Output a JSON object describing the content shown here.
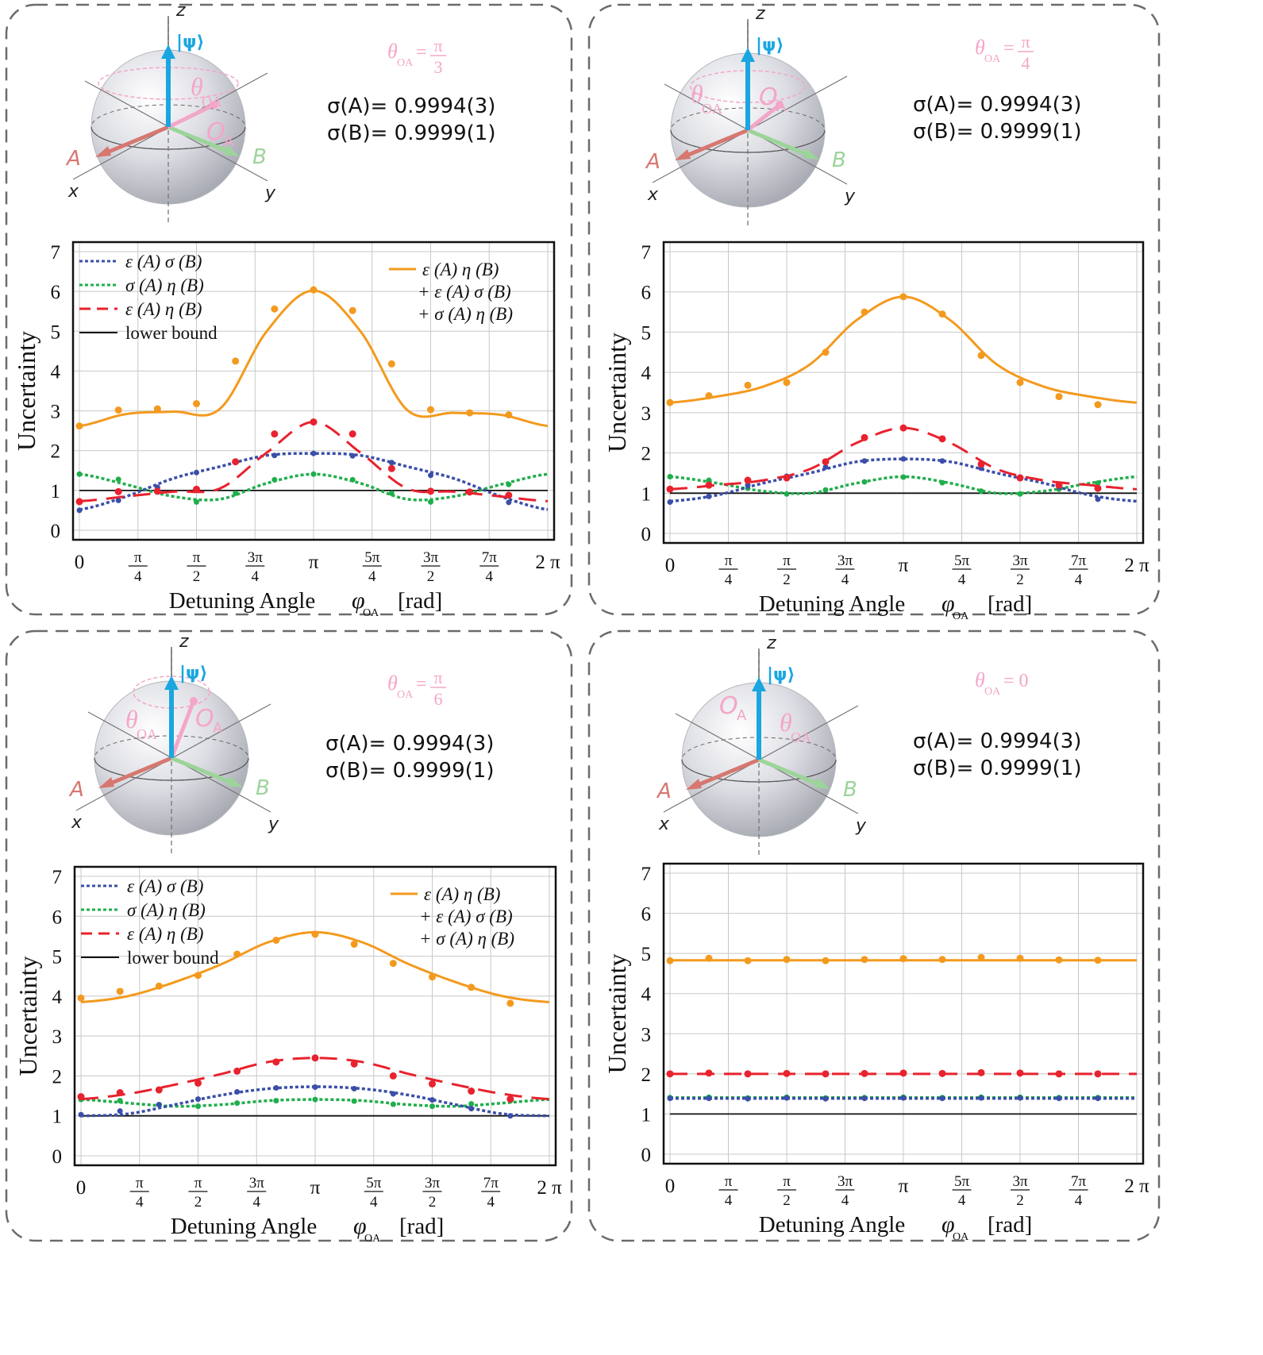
{
  "x_axis": {
    "title": "Detuning Angle",
    "symbol": "φ",
    "subscript": "OA",
    "unit": "[rad]",
    "ticks": [
      {
        "v": 0,
        "num": "0",
        "den": ""
      },
      {
        "v": 0.25,
        "num": "π",
        "den": "4"
      },
      {
        "v": 0.5,
        "num": "π",
        "den": "2"
      },
      {
        "v": 0.75,
        "num": "3π",
        "den": "4"
      },
      {
        "v": 1.0,
        "num": "π",
        "den": ""
      },
      {
        "v": 1.25,
        "num": "5π",
        "den": "4"
      },
      {
        "v": 1.5,
        "num": "3π",
        "den": "2"
      },
      {
        "v": 1.75,
        "num": "7π",
        "den": "4"
      },
      {
        "v": 2.0,
        "num": "2 π",
        "den": ""
      }
    ]
  },
  "y_axis": {
    "title": "Uncertainty",
    "ylim": [
      0,
      7
    ],
    "ticks": [
      0,
      1,
      2,
      3,
      4,
      5,
      6,
      7
    ]
  },
  "sphere_labels": {
    "z": "z",
    "x": "x",
    "y": "y",
    "A": "A",
    "B": "B",
    "psi": "|ψ⟩",
    "theta": "θ",
    "theta_sub": "OA",
    "O": "O",
    "O_sub": "A"
  },
  "legend": {
    "blue": "ε (A) σ (B)",
    "green": "σ (A) η (B)",
    "red": "ε (A) η (B)",
    "black": "lower bound",
    "orange_1": "ε (A) η (B)",
    "orange_2": "+ ε (A) σ (B)",
    "orange_3": "+ σ (A) η (B)"
  },
  "colors": {
    "orange": "#f39a1e",
    "red": "#e8222e",
    "green": "#1fae4b",
    "blue": "#3b4fa8",
    "black": "#111111",
    "pink": "#f4a6c8",
    "cyan": "#1aa6e0",
    "axisA": "#d67770",
    "axisB": "#9cd49a",
    "frame": "#6b6b6b"
  },
  "chart_data": [
    {
      "type": "line",
      "panel": "top-left",
      "theta_label": "θ",
      "theta_sub": "OA",
      "theta_eq": "=",
      "theta_num": "π",
      "theta_den": "3",
      "sigma_A": "σ(A)= 0.9994(3)",
      "sigma_B": "σ(B)= 0.9999(1)",
      "xlabel": "Detuning Angle φ_OA [rad]",
      "ylabel": "Uncertainty",
      "xlim_pi": [
        0,
        2
      ],
      "ylim": [
        0,
        7
      ],
      "legend": true,
      "x_pi": [
        0,
        0.2,
        0.4,
        0.6,
        0.8,
        1.0,
        1.2,
        1.4,
        1.6,
        1.8,
        2.0
      ],
      "series": [
        {
          "name": "ε(A)η(B)+ε(A)σ(B)+σ(A)η(B)",
          "color": "orange",
          "style": "solid",
          "curve": [
            2.62,
            2.92,
            2.98,
            3.05,
            5.0,
            6.02,
            5.0,
            3.02,
            2.95,
            2.9,
            2.62
          ],
          "points": [
            2.62,
            3.02,
            3.05,
            3.18,
            4.25,
            5.56,
            6.04,
            5.52,
            4.18,
            3.03,
            2.95,
            2.9
          ]
        },
        {
          "name": "ε(A)η(B)",
          "color": "red",
          "style": "dashed",
          "curve": [
            0.73,
            0.85,
            0.97,
            1.05,
            1.95,
            2.72,
            1.95,
            1.05,
            0.97,
            0.85,
            0.73
          ],
          "points": [
            0.72,
            0.97,
            0.98,
            1.03,
            1.72,
            2.42,
            2.72,
            2.42,
            1.55,
            0.98,
            0.96,
            0.88
          ]
        },
        {
          "name": "σ(A)η(B)",
          "color": "green",
          "style": "dotted",
          "curve": [
            1.41,
            1.15,
            0.85,
            0.78,
            1.18,
            1.41,
            1.18,
            0.78,
            0.85,
            1.15,
            1.41
          ],
          "points": [
            1.41,
            1.28,
            1.0,
            0.71,
            0.93,
            1.27,
            1.41,
            1.27,
            0.93,
            0.71,
            0.96,
            1.15
          ]
        },
        {
          "name": "ε(A)σ(B)",
          "color": "blue",
          "style": "dotted",
          "curve": [
            0.52,
            0.85,
            1.3,
            1.6,
            1.88,
            1.93,
            1.88,
            1.6,
            1.3,
            0.85,
            0.52
          ],
          "points": [
            0.5,
            0.75,
            1.08,
            1.45,
            1.72,
            1.88,
            1.93,
            1.87,
            1.7,
            1.38,
            0.98,
            0.7
          ]
        },
        {
          "name": "lower bound",
          "color": "black",
          "style": "solid",
          "curve": [
            1,
            1,
            1,
            1,
            1,
            1,
            1,
            1,
            1,
            1,
            1
          ],
          "points": []
        }
      ]
    },
    {
      "type": "line",
      "panel": "top-right",
      "theta_label": "θ",
      "theta_sub": "OA",
      "theta_eq": "=",
      "theta_num": "π",
      "theta_den": "4",
      "sigma_A": "σ(A)= 0.9994(3)",
      "sigma_B": "σ(B)= 0.9999(1)",
      "xlabel": "Detuning Angle φ_OA [rad]",
      "ylabel": "Uncertainty",
      "xlim_pi": [
        0,
        2
      ],
      "ylim": [
        0,
        7
      ],
      "legend": false,
      "x_pi": [
        0,
        0.2,
        0.4,
        0.6,
        0.8,
        1.0,
        1.2,
        1.4,
        1.6,
        1.8,
        2.0
      ],
      "series": [
        {
          "name": "ε(A)η(B)+ε(A)σ(B)+σ(A)η(B)",
          "color": "orange",
          "style": "solid",
          "curve": [
            3.25,
            3.4,
            3.65,
            4.2,
            5.3,
            5.88,
            5.3,
            4.2,
            3.65,
            3.4,
            3.25
          ],
          "points": [
            3.25,
            3.42,
            3.68,
            3.75,
            4.5,
            5.5,
            5.88,
            5.45,
            4.42,
            3.75,
            3.4,
            3.2
          ]
        },
        {
          "name": "ε(A)η(B)",
          "color": "red",
          "style": "dashed",
          "curve": [
            1.1,
            1.2,
            1.32,
            1.6,
            2.25,
            2.62,
            2.25,
            1.6,
            1.32,
            1.2,
            1.1
          ],
          "points": [
            1.1,
            1.2,
            1.32,
            1.38,
            1.78,
            2.38,
            2.62,
            2.35,
            1.72,
            1.38,
            1.2,
            1.12
          ]
        },
        {
          "name": "σ(A)η(B)",
          "color": "green",
          "style": "dotted",
          "curve": [
            1.41,
            1.25,
            1.05,
            1.0,
            1.25,
            1.41,
            1.25,
            1.0,
            1.05,
            1.25,
            1.41
          ],
          "points": [
            1.41,
            1.32,
            1.12,
            0.98,
            1.08,
            1.28,
            1.4,
            1.26,
            1.05,
            0.98,
            1.1,
            1.25
          ]
        },
        {
          "name": "ε(A)σ(B)",
          "color": "blue",
          "style": "dotted",
          "curve": [
            0.8,
            0.95,
            1.25,
            1.5,
            1.78,
            1.85,
            1.78,
            1.5,
            1.25,
            0.95,
            0.8
          ],
          "points": [
            0.78,
            0.92,
            1.2,
            1.42,
            1.65,
            1.8,
            1.85,
            1.8,
            1.62,
            1.4,
            1.15,
            0.85
          ]
        },
        {
          "name": "lower bound",
          "color": "black",
          "style": "solid",
          "curve": [
            1,
            1,
            1,
            1,
            1,
            1,
            1,
            1,
            1,
            1,
            1
          ],
          "points": []
        }
      ]
    },
    {
      "type": "line",
      "panel": "bottom-left",
      "theta_label": "θ",
      "theta_sub": "OA",
      "theta_eq": "=",
      "theta_num": "π",
      "theta_den": "6",
      "sigma_A": "σ(A)= 0.9994(3)",
      "sigma_B": "σ(B)= 0.9999(1)",
      "xlabel": "Detuning Angle φ_OA [rad]",
      "ylabel": "Uncertainty",
      "xlim_pi": [
        0,
        2
      ],
      "ylim": [
        0,
        7
      ],
      "legend": true,
      "x_pi": [
        0,
        0.2,
        0.4,
        0.6,
        0.8,
        1.0,
        1.2,
        1.4,
        1.6,
        1.8,
        2.0
      ],
      "series": [
        {
          "name": "ε(A)η(B)+ε(A)σ(B)+σ(A)η(B)",
          "color": "orange",
          "style": "solid",
          "curve": [
            3.85,
            4.0,
            4.35,
            4.8,
            5.35,
            5.6,
            5.35,
            4.8,
            4.35,
            4.0,
            3.85
          ],
          "points": [
            3.95,
            4.12,
            4.25,
            4.52,
            5.05,
            5.4,
            5.55,
            5.3,
            4.82,
            4.48,
            4.22,
            3.82
          ]
        },
        {
          "name": "ε(A)η(B)",
          "color": "red",
          "style": "dashed",
          "curve": [
            1.42,
            1.55,
            1.78,
            2.05,
            2.35,
            2.45,
            2.35,
            2.05,
            1.78,
            1.55,
            1.42
          ],
          "points": [
            1.48,
            1.58,
            1.65,
            1.82,
            2.12,
            2.35,
            2.45,
            2.3,
            2.0,
            1.8,
            1.62,
            1.42
          ]
        },
        {
          "name": "σ(A)η(B)",
          "color": "green",
          "style": "dotted",
          "curve": [
            1.41,
            1.32,
            1.24,
            1.28,
            1.38,
            1.41,
            1.38,
            1.28,
            1.24,
            1.32,
            1.41
          ],
          "points": [
            1.41,
            1.38,
            1.28,
            1.24,
            1.32,
            1.38,
            1.41,
            1.37,
            1.29,
            1.24,
            1.3,
            1.38
          ]
        },
        {
          "name": "ε(A)σ(B)",
          "color": "blue",
          "style": "dotted",
          "curve": [
            1.0,
            1.05,
            1.28,
            1.52,
            1.68,
            1.73,
            1.68,
            1.52,
            1.28,
            1.05,
            1.0
          ],
          "points": [
            1.03,
            1.12,
            1.28,
            1.42,
            1.6,
            1.7,
            1.72,
            1.68,
            1.55,
            1.4,
            1.18,
            1.0
          ]
        },
        {
          "name": "lower bound",
          "color": "black",
          "style": "solid",
          "curve": [
            1,
            1,
            1,
            1,
            1,
            1,
            1,
            1,
            1,
            1,
            1
          ],
          "points": []
        }
      ]
    },
    {
      "type": "line",
      "panel": "bottom-right",
      "theta_label": "θ",
      "theta_sub": "OA",
      "theta_eq": "= 0",
      "theta_num": "",
      "theta_den": "",
      "sigma_A": "σ(A)= 0.9994(3)",
      "sigma_B": "σ(B)= 0.9999(1)",
      "xlabel": "Detuning Angle φ_OA [rad]",
      "ylabel": "Uncertainty",
      "xlim_pi": [
        0,
        2
      ],
      "ylim": [
        0,
        7
      ],
      "legend": false,
      "x_pi": [
        0,
        0.2,
        0.4,
        0.6,
        0.8,
        1.0,
        1.2,
        1.4,
        1.6,
        1.8,
        2.0
      ],
      "series": [
        {
          "name": "ε(A)η(B)+ε(A)σ(B)+σ(A)η(B)",
          "color": "orange",
          "style": "solid",
          "curve": [
            4.83,
            4.83,
            4.83,
            4.83,
            4.83,
            4.83,
            4.83,
            4.83,
            4.83,
            4.83,
            4.83
          ],
          "points": [
            4.82,
            4.88,
            4.82,
            4.85,
            4.82,
            4.85,
            4.87,
            4.85,
            4.9,
            4.88,
            4.84,
            4.83
          ]
        },
        {
          "name": "ε(A)η(B)",
          "color": "red",
          "style": "dashed",
          "curve": [
            2.0,
            2.0,
            2.0,
            2.0,
            2.0,
            2.0,
            2.0,
            2.0,
            2.0,
            2.0,
            2.0
          ],
          "points": [
            2.0,
            2.02,
            2.0,
            2.01,
            2.0,
            2.01,
            2.02,
            2.01,
            2.03,
            2.02,
            2.0,
            2.0
          ]
        },
        {
          "name": "σ(A)η(B)",
          "color": "green",
          "style": "dotted",
          "curve": [
            1.41,
            1.41,
            1.41,
            1.41,
            1.41,
            1.41,
            1.41,
            1.41,
            1.41,
            1.41,
            1.41
          ],
          "points": [
            1.41,
            1.42,
            1.4,
            1.42,
            1.4,
            1.41,
            1.42,
            1.41,
            1.42,
            1.42,
            1.41,
            1.41
          ]
        },
        {
          "name": "ε(A)σ(B)",
          "color": "blue",
          "style": "dotted",
          "curve": [
            1.39,
            1.39,
            1.39,
            1.39,
            1.39,
            1.39,
            1.39,
            1.39,
            1.39,
            1.39,
            1.39
          ],
          "points": [
            1.39,
            1.39,
            1.38,
            1.4,
            1.38,
            1.39,
            1.4,
            1.39,
            1.4,
            1.4,
            1.39,
            1.39
          ]
        },
        {
          "name": "lower bound",
          "color": "black",
          "style": "solid",
          "curve": [
            1,
            1,
            1,
            1,
            1,
            1,
            1,
            1,
            1,
            1,
            1
          ],
          "points": []
        }
      ]
    }
  ]
}
